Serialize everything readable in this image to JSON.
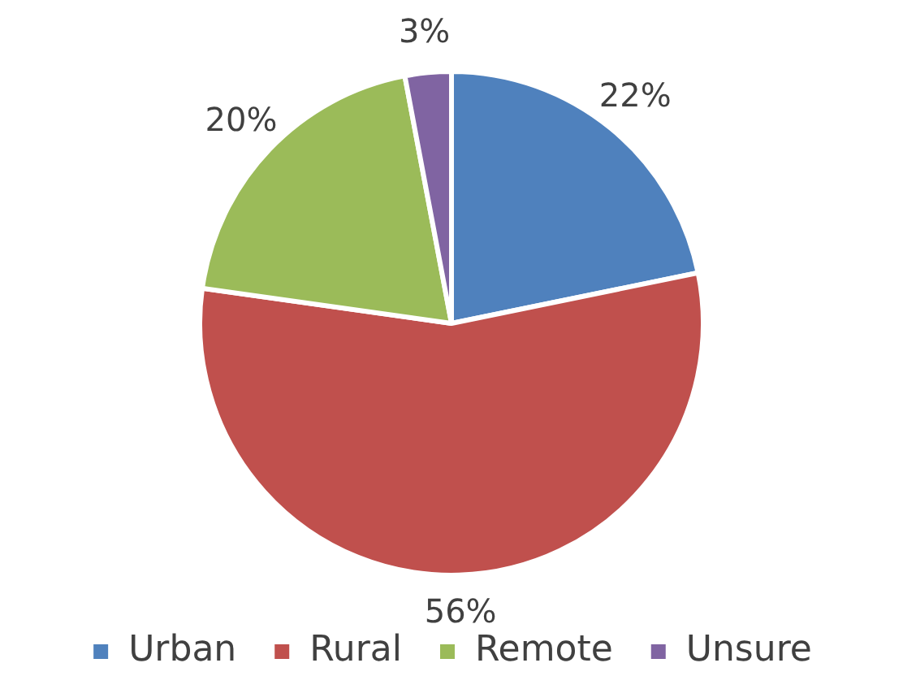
{
  "chart_data": {
    "type": "pie",
    "categories": [
      "Urban",
      "Rural",
      "Remote",
      "Unsure"
    ],
    "values": [
      22,
      56,
      20,
      3
    ],
    "colors": [
      "#4f81bd",
      "#c0504d",
      "#9bbb59",
      "#8064a2"
    ],
    "value_labels": [
      "22%",
      "56%",
      "20%",
      "3%"
    ],
    "legend": "bottom"
  }
}
